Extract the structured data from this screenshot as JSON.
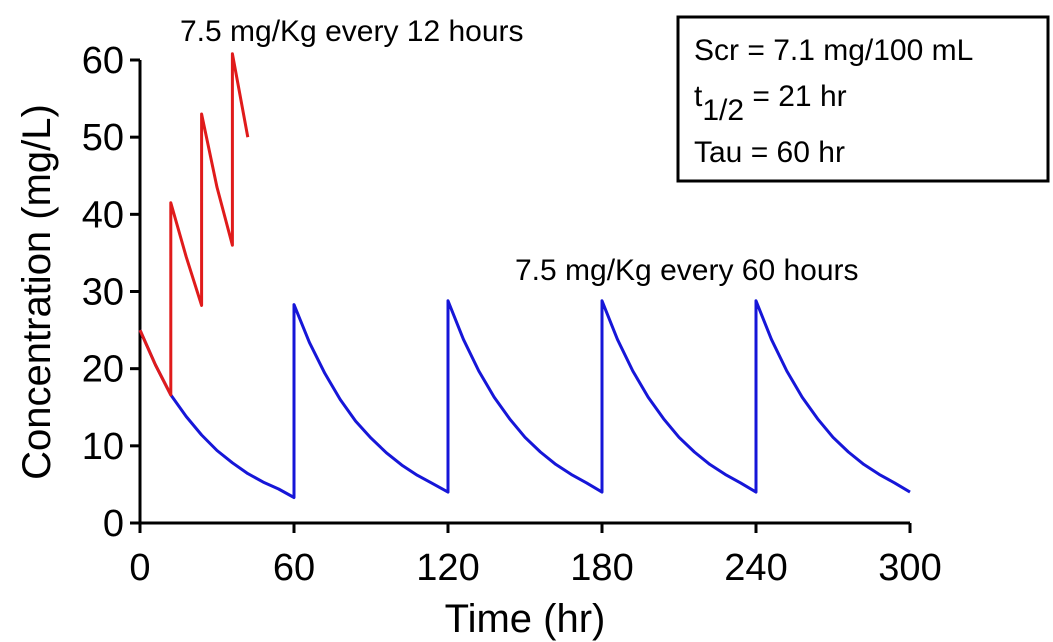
{
  "chart_data": {
    "type": "line",
    "title": "",
    "xlabel": "Time (hr)",
    "ylabel": "Concentration (mg/L)",
    "xlim": [
      0,
      300
    ],
    "ylim": [
      0,
      60
    ],
    "xticks": [
      0,
      60,
      120,
      180,
      240,
      300
    ],
    "yticks": [
      0,
      10,
      20,
      30,
      40,
      50,
      60
    ],
    "xtick_labels": [
      "0",
      "60",
      "120",
      "180",
      "240",
      "300"
    ],
    "ytick_labels": [
      "0",
      "10",
      "20",
      "30",
      "40",
      "50",
      "60"
    ],
    "grid": false,
    "series": [
      {
        "color": "#1616d8",
        "points": [
          [
            0,
            25
          ],
          [
            6,
            20.5
          ],
          [
            12,
            16.6
          ],
          [
            18,
            13.8
          ],
          [
            24,
            11.4
          ],
          [
            30,
            9.4
          ],
          [
            36,
            7.8
          ],
          [
            42,
            6.4
          ],
          [
            48,
            5.3
          ],
          [
            54,
            4.4
          ],
          [
            60,
            3.3
          ],
          [
            60,
            28.3
          ],
          [
            66,
            23.4
          ],
          [
            72,
            19.4
          ],
          [
            78,
            16
          ],
          [
            84,
            13.2
          ],
          [
            90,
            11
          ],
          [
            96,
            9.1
          ],
          [
            102,
            7.5
          ],
          [
            108,
            6.2
          ],
          [
            114,
            5.1
          ],
          [
            120,
            4
          ],
          [
            120,
            28.8
          ],
          [
            126,
            23.8
          ],
          [
            132,
            19.7
          ],
          [
            138,
            16.3
          ],
          [
            144,
            13.5
          ],
          [
            150,
            11.1
          ],
          [
            156,
            9.2
          ],
          [
            162,
            7.6
          ],
          [
            168,
            6.3
          ],
          [
            174,
            5.2
          ],
          [
            180,
            4
          ],
          [
            180,
            28.8
          ],
          [
            186,
            23.8
          ],
          [
            192,
            19.7
          ],
          [
            198,
            16.3
          ],
          [
            204,
            13.5
          ],
          [
            210,
            11.1
          ],
          [
            216,
            9.2
          ],
          [
            222,
            7.6
          ],
          [
            228,
            6.3
          ],
          [
            234,
            5.2
          ],
          [
            240,
            4
          ],
          [
            240,
            28.8
          ],
          [
            246,
            23.8
          ],
          [
            252,
            19.7
          ],
          [
            258,
            16.3
          ],
          [
            264,
            13.5
          ],
          [
            270,
            11.1
          ],
          [
            276,
            9.2
          ],
          [
            282,
            7.6
          ],
          [
            288,
            6.3
          ],
          [
            294,
            5.2
          ],
          [
            300,
            4
          ]
        ]
      },
      {
        "color": "#e01b1b",
        "points": [
          [
            0,
            25
          ],
          [
            6,
            20.5
          ],
          [
            12,
            16.6
          ],
          [
            12,
            41.5
          ],
          [
            18,
            34.5
          ],
          [
            24,
            28.2
          ],
          [
            24,
            53
          ],
          [
            30,
            43.5
          ],
          [
            36,
            36
          ],
          [
            36,
            60.8
          ],
          [
            42,
            50
          ]
        ]
      }
    ],
    "annotations": [
      {
        "text": "7.5 mg/Kg every 12 hours",
        "color": "#000000"
      },
      {
        "text": "7.5 mg/Kg every 60 hours",
        "color": "#000000"
      }
    ],
    "info_box": {
      "line1": "Scr = 7.1 mg/100 mL",
      "line2_main": "t",
      "line2_sub": "1/2",
      "line2_rest": " = 21 hr",
      "line3": "Tau = 60 hr"
    }
  }
}
